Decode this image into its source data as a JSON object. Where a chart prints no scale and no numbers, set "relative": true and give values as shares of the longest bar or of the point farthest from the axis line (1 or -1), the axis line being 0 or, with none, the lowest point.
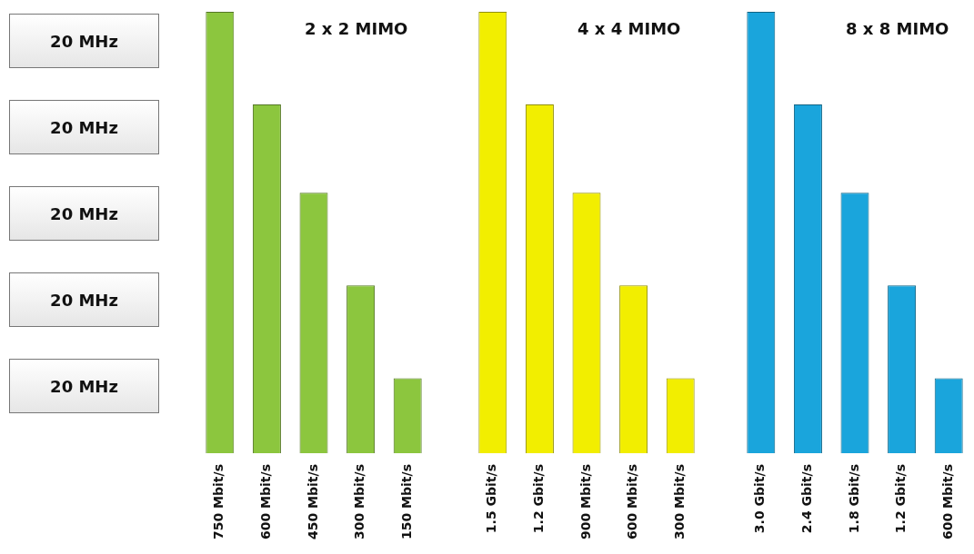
{
  "chart_data": [
    {
      "type": "other",
      "annotations": [
        "20 MHz",
        "20 MHz",
        "20 MHz",
        "20 MHz",
        "20 MHz"
      ]
    },
    {
      "type": "bar",
      "title": "2 x 2 MIMO",
      "relative": true,
      "categories": [
        "750 Mbit/s",
        "600 Mbit/s",
        "450 Mbit/s",
        "300 Mbit/s",
        "150 Mbit/s"
      ],
      "series": [
        {
          "color": "#8cc63e",
          "values": [
            1,
            0.79,
            0.59,
            0.38,
            0.17
          ]
        }
      ]
    },
    {
      "type": "bar",
      "title": "4 x 4 MIMO",
      "relative": true,
      "categories": [
        "1.5 Gbit/s",
        "1.2 Gbit/s",
        "900 Mbit/s",
        "600 Mbit/s",
        "300 Mbit/s"
      ],
      "series": [
        {
          "color": "#f2ee00",
          "values": [
            1,
            0.79,
            0.59,
            0.38,
            0.17
          ]
        }
      ]
    },
    {
      "type": "bar",
      "title": "8 x 8 MIMO",
      "relative": true,
      "categories": [
        "3.0 Gbit/s",
        "2.4 Gbit/s",
        "1.8 Gbit/s",
        "1.2 Gbit/s",
        "600 Mbit/s"
      ],
      "series": [
        {
          "color": "#1aa5dc",
          "values": [
            1,
            0.79,
            0.59,
            0.38,
            0.17
          ]
        }
      ]
    }
  ]
}
